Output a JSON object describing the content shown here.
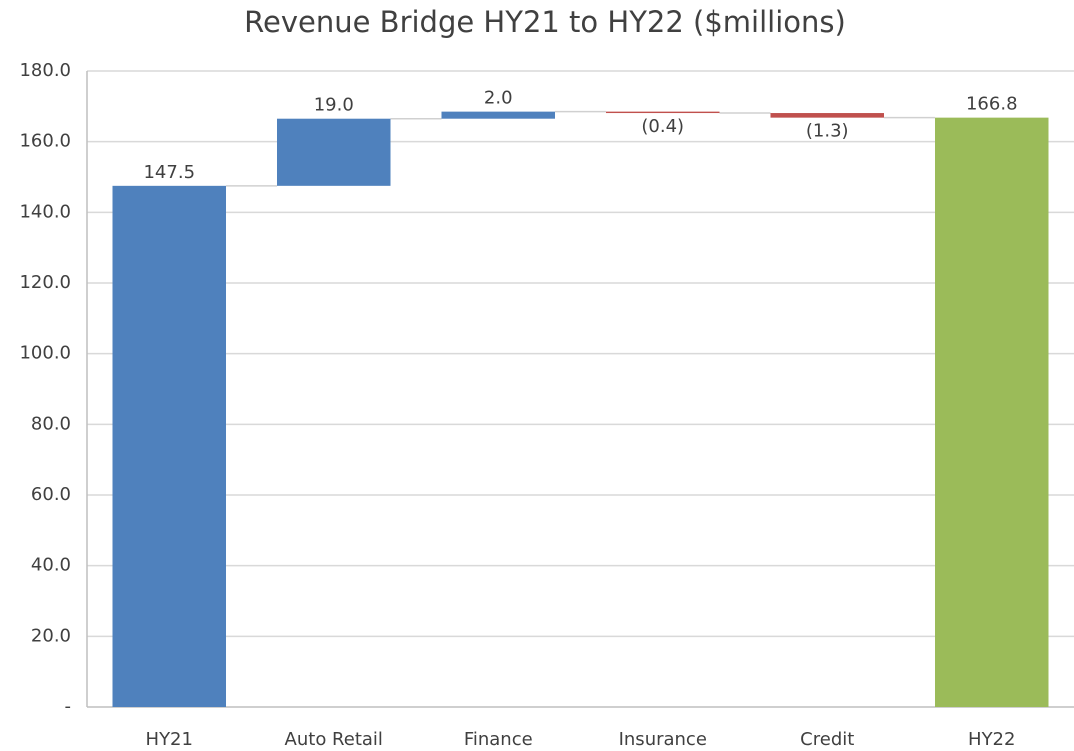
{
  "chart_data": {
    "type": "waterfall",
    "title": "Revenue Bridge HY21 to HY22 ($millions)",
    "categories": [
      "HY21",
      "Auto Retail",
      "Finance",
      "Insurance",
      "Credit",
      "HY22"
    ],
    "values": [
      147.5,
      19.0,
      2.0,
      -0.4,
      -1.3,
      166.8
    ],
    "value_labels": [
      "147.5",
      "19.0",
      "2.0",
      "(0.4)",
      "(1.3)",
      "166.8"
    ],
    "colors": [
      "#4f81bd",
      "#4f81bd",
      "#4f81bd",
      "#c0504d",
      "#c0504d",
      "#9bbb59"
    ],
    "ylim": [
      0,
      180
    ],
    "yticks": [
      {
        "value": 0,
        "label": "-"
      },
      {
        "value": 20,
        "label": "20.0"
      },
      {
        "value": 40,
        "label": "40.0"
      },
      {
        "value": 60,
        "label": "60.0"
      },
      {
        "value": 80,
        "label": "80.0"
      },
      {
        "value": 100,
        "label": "100.0"
      },
      {
        "value": 120,
        "label": "120.0"
      },
      {
        "value": 140,
        "label": "140.0"
      },
      {
        "value": 160,
        "label": "160.0"
      },
      {
        "value": 180,
        "label": "180.0"
      }
    ],
    "grid": true
  }
}
